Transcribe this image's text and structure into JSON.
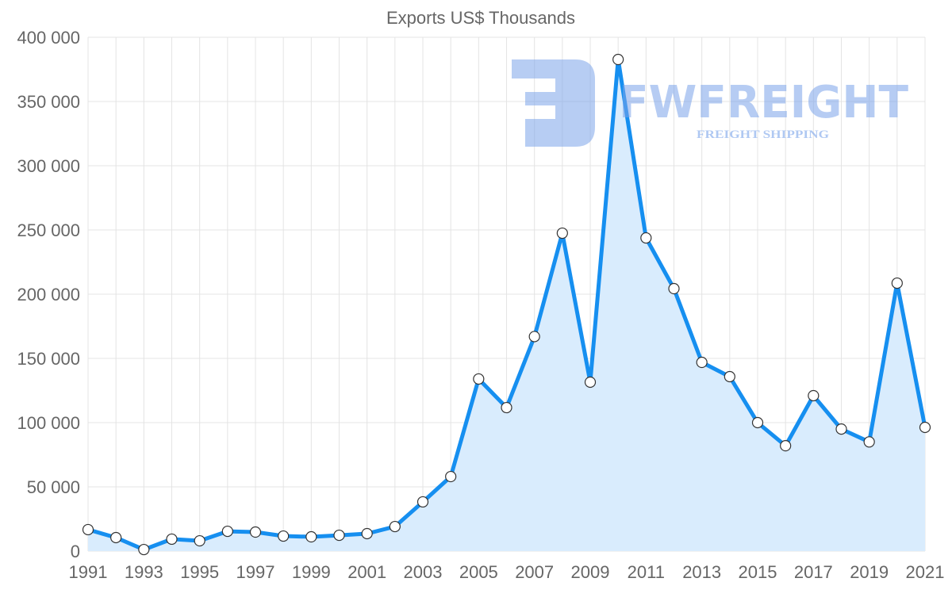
{
  "chart_data": {
    "type": "area",
    "title": "Exports US$ Thousands",
    "xlabel": "",
    "ylabel": "",
    "ylim": [
      0,
      400000
    ],
    "grid": true,
    "legend": "none",
    "x": [
      1991,
      1992,
      1993,
      1994,
      1995,
      1996,
      1997,
      1998,
      1999,
      2000,
      2001,
      2002,
      2003,
      2004,
      2005,
      2006,
      2007,
      2008,
      2009,
      2010,
      2011,
      2012,
      2013,
      2014,
      2015,
      2016,
      2017,
      2018,
      2019,
      2020,
      2021
    ],
    "series": [
      {
        "name": "Exports US$ Thousands",
        "values": [
          16700,
          10500,
          1200,
          9300,
          8000,
          15400,
          14800,
          11700,
          11100,
          12300,
          13600,
          19100,
          38300,
          58000,
          134000,
          111700,
          167000,
          247500,
          131500,
          382700,
          243800,
          204300,
          146900,
          135800,
          100000,
          82000,
          121000,
          95000,
          85000,
          208600,
          96300
        ]
      }
    ],
    "y_ticks": [
      0,
      50000,
      100000,
      150000,
      200000,
      250000,
      300000,
      350000,
      400000
    ],
    "y_tick_labels": [
      "0",
      "50 000",
      "100 000",
      "150 000",
      "200 000",
      "250 000",
      "300 000",
      "350 000",
      "400 000"
    ],
    "x_tick_labels": [
      "1991",
      "1993",
      "1995",
      "1997",
      "1999",
      "2001",
      "2003",
      "2005",
      "2007",
      "2009",
      "2011",
      "2013",
      "2015",
      "2017",
      "2019",
      "2021"
    ],
    "colors": {
      "line": "#168ff0",
      "fill": "#d9ecfd",
      "grid": "#e4e4e4"
    }
  },
  "watermark": {
    "brand": "FWFREIGHT",
    "tagline": "FREIGHT SHIPPING"
  }
}
